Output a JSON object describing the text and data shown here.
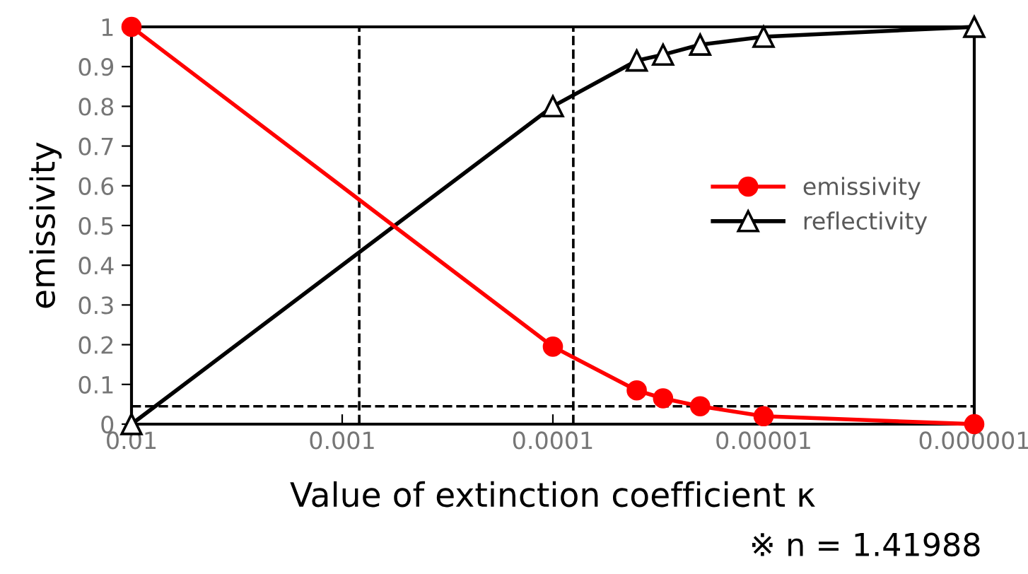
{
  "chart_data": {
    "type": "line",
    "xlabel": "Value of extinction coefficient κ",
    "ylabel": "emissivity",
    "log": "x",
    "x": [
      0.01,
      0.0001,
      4e-05,
      3e-05,
      2e-05,
      1e-05,
      1e-06
    ],
    "series": [
      {
        "name": "emissivity",
        "color": "#ff0000",
        "marker": "circle",
        "values": [
          1,
          0.195,
          0.085,
          0.065,
          0.045,
          0.02,
          0
        ]
      },
      {
        "name": "reflectivity",
        "color": "#000000",
        "marker": "triangle",
        "values": [
          0,
          0.8,
          0.915,
          0.93,
          0.955,
          0.975,
          1
        ]
      }
    ],
    "xlim": [
      0.01,
      1e-06
    ],
    "xticks": [
      {
        "value": 0.01,
        "label": "0.01"
      },
      {
        "value": 0.001,
        "label": "0.001"
      },
      {
        "value": 0.0001,
        "label": "0.0001"
      },
      {
        "value": 1e-05,
        "label": "0.00001"
      },
      {
        "value": 1e-06,
        "label": "0.000001"
      }
    ],
    "ylim": [
      0,
      1
    ],
    "yticks": [
      0,
      0.1,
      0.2,
      0.3,
      0.4,
      0.5,
      0.6,
      0.7,
      0.8,
      0.9,
      1
    ],
    "ref_lines": [
      {
        "axis": "x",
        "value": 0.00083,
        "line_style": "dashed",
        "color": "#000000"
      },
      {
        "axis": "x",
        "value": 8e-05,
        "line_style": "dashed",
        "color": "#000000"
      },
      {
        "axis": "y",
        "value": 0.045,
        "line_style": "dashed",
        "color": "#000000"
      }
    ],
    "annotations": [
      "※ n = 1.41988"
    ],
    "legend": "right",
    "grid": false
  }
}
